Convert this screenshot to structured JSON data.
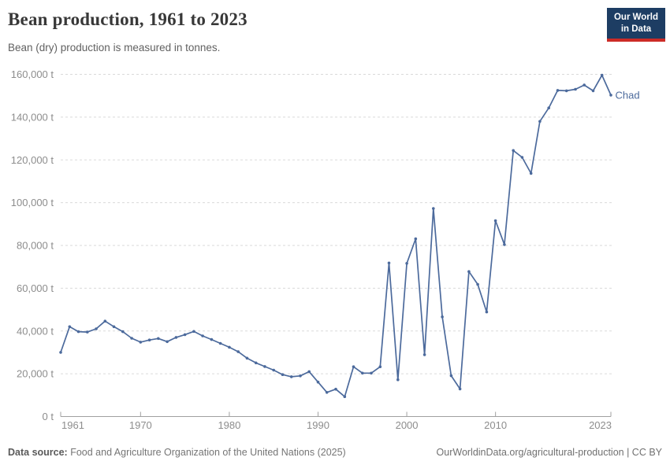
{
  "header": {
    "title": "Bean production, 1961 to 2023",
    "subtitle": "Bean (dry) production is measured in tonnes.",
    "logo": {
      "line1": "Our World",
      "line2": "in Data",
      "bg_color": "#1d3d63",
      "accent_color": "#cc2b27"
    }
  },
  "chart_data": {
    "type": "line",
    "title": "Bean production, 1961 to 2023",
    "unit": "t",
    "xlim": [
      1961,
      2023
    ],
    "ylim": [
      0,
      160000
    ],
    "ytick_step": 20000,
    "xticks": [
      1961,
      1970,
      1980,
      1990,
      2000,
      2010,
      2023
    ],
    "grid": "horizontal-dashed",
    "legend_position": "end-of-line-label",
    "colors": {
      "line": "#4C6A9C",
      "gridline": "#dadada",
      "axis": "#a0a0a0",
      "tick_label": "#8d8d8d"
    },
    "series": [
      {
        "name": "Chad",
        "color": "#4C6A9C",
        "x": [
          1961,
          1962,
          1963,
          1964,
          1965,
          1966,
          1967,
          1968,
          1969,
          1970,
          1971,
          1972,
          1973,
          1974,
          1975,
          1976,
          1977,
          1978,
          1979,
          1980,
          1981,
          1982,
          1983,
          1984,
          1985,
          1986,
          1987,
          1988,
          1989,
          1990,
          1991,
          1992,
          1993,
          1994,
          1995,
          1996,
          1997,
          1998,
          1999,
          2000,
          2001,
          2002,
          2003,
          2004,
          2005,
          2006,
          2007,
          2008,
          2009,
          2010,
          2011,
          2012,
          2013,
          2014,
          2015,
          2016,
          2017,
          2018,
          2019,
          2020,
          2021,
          2022,
          2023
        ],
        "values": [
          30000,
          42000,
          39700,
          39500,
          41000,
          44600,
          42000,
          39700,
          36600,
          34800,
          35800,
          36500,
          35000,
          37000,
          38300,
          39800,
          37700,
          36000,
          34200,
          32400,
          30300,
          27300,
          25100,
          23400,
          21700,
          19600,
          18600,
          19000,
          21000,
          16100,
          11300,
          12800,
          9300,
          23300,
          20300,
          20300,
          23300,
          71800,
          17200,
          71600,
          83100,
          28900,
          97300,
          46600,
          19100,
          12900,
          67800,
          61800,
          48900,
          91600,
          80400,
          124400,
          121200,
          113700,
          138000,
          144300,
          152500,
          152300,
          153000,
          155000,
          152300,
          159600,
          150300
        ]
      }
    ]
  },
  "footer": {
    "source_label": "Data source:",
    "source_text": " Food and Agriculture Organization of the United Nations (2025)",
    "credit": "OurWorldinData.org/agricultural-production | CC BY"
  }
}
